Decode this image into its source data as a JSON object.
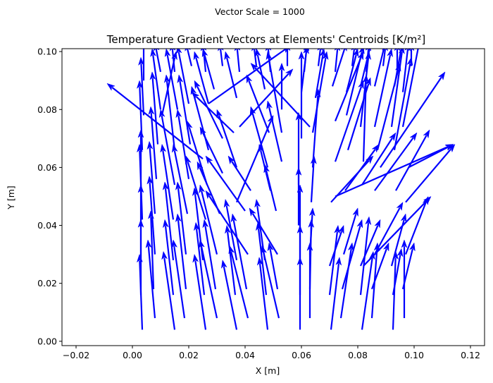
{
  "chart_data": {
    "type": "quiver",
    "suptitle": "Vector Scale = 1000",
    "title": "Temperature Gradient Vectors at Elements' Centroids [K/m²]",
    "xlabel": "X [m]",
    "ylabel": "Y [m]",
    "xlim": [
      -0.025,
      0.125
    ],
    "ylim": [
      -0.0015,
      0.101
    ],
    "xticks": [
      -0.02,
      0.0,
      0.02,
      0.04,
      0.06,
      0.08,
      0.1,
      0.12
    ],
    "xtick_labels": [
      "−0.02",
      "0.00",
      "0.02",
      "0.04",
      "0.06",
      "0.08",
      "0.10",
      "0.12"
    ],
    "yticks": [
      0.0,
      0.02,
      0.04,
      0.06,
      0.08,
      0.1
    ],
    "ytick_labels": [
      "0.00",
      "0.02",
      "0.04",
      "0.06",
      "0.08",
      "0.10"
    ],
    "color": "#0000ff",
    "grid": false,
    "vector_scale": 1000,
    "vectors": [
      {
        "x": 0.0035,
        "y": 0.004,
        "u": -0.001,
        "v": 0.026
      },
      {
        "x": 0.008,
        "y": 0.008,
        "u": -0.0025,
        "v": 0.027
      },
      {
        "x": 0.015,
        "y": 0.004,
        "u": -0.004,
        "v": 0.027
      },
      {
        "x": 0.0185,
        "y": 0.008,
        "u": -0.004,
        "v": 0.027
      },
      {
        "x": 0.026,
        "y": 0.004,
        "u": -0.004,
        "v": 0.026
      },
      {
        "x": 0.03,
        "y": 0.008,
        "u": -0.006,
        "v": 0.027
      },
      {
        "x": 0.037,
        "y": 0.004,
        "u": -0.005,
        "v": 0.024
      },
      {
        "x": 0.041,
        "y": 0.008,
        "u": -0.0065,
        "v": 0.025
      },
      {
        "x": 0.048,
        "y": 0.004,
        "u": -0.003,
        "v": 0.025
      },
      {
        "x": 0.052,
        "y": 0.008,
        "u": -0.006,
        "v": 0.025
      },
      {
        "x": 0.0595,
        "y": 0.004,
        "u": 0.0,
        "v": 0.025
      },
      {
        "x": 0.063,
        "y": 0.008,
        "u": 0.0,
        "v": 0.026
      },
      {
        "x": 0.0705,
        "y": 0.004,
        "u": 0.003,
        "v": 0.025
      },
      {
        "x": 0.074,
        "y": 0.008,
        "u": 0.004,
        "v": 0.026
      },
      {
        "x": 0.0815,
        "y": 0.004,
        "u": 0.004,
        "v": 0.027
      },
      {
        "x": 0.085,
        "y": 0.008,
        "u": 0.002,
        "v": 0.026
      },
      {
        "x": 0.0925,
        "y": 0.004,
        "u": 0.001,
        "v": 0.027
      },
      {
        "x": 0.0965,
        "y": 0.008,
        "u": 0.0,
        "v": 0.027
      },
      {
        "x": 0.003,
        "y": 0.016,
        "u": 0.0,
        "v": 0.026
      },
      {
        "x": 0.0075,
        "y": 0.018,
        "u": -0.001,
        "v": 0.027
      },
      {
        "x": 0.0145,
        "y": 0.016,
        "u": -0.003,
        "v": 0.026
      },
      {
        "x": 0.019,
        "y": 0.018,
        "u": -0.003,
        "v": 0.026
      },
      {
        "x": 0.0255,
        "y": 0.016,
        "u": -0.003,
        "v": 0.025
      },
      {
        "x": 0.0295,
        "y": 0.018,
        "u": -0.004,
        "v": 0.024
      },
      {
        "x": 0.0365,
        "y": 0.016,
        "u": -0.003,
        "v": 0.024
      },
      {
        "x": 0.0405,
        "y": 0.018,
        "u": -0.005,
        "v": 0.026
      },
      {
        "x": 0.0475,
        "y": 0.016,
        "u": -0.003,
        "v": 0.025
      },
      {
        "x": 0.0515,
        "y": 0.018,
        "u": -0.003,
        "v": 0.016
      },
      {
        "x": 0.0595,
        "y": 0.016,
        "u": 0.0,
        "v": 0.024
      },
      {
        "x": 0.063,
        "y": 0.018,
        "u": 0.0005,
        "v": 0.024
      },
      {
        "x": 0.07,
        "y": 0.016,
        "u": 0.003,
        "v": 0.024
      },
      {
        "x": 0.0745,
        "y": 0.018,
        "u": 0.007,
        "v": 0.024
      },
      {
        "x": 0.081,
        "y": 0.016,
        "u": 0.003,
        "v": 0.027
      },
      {
        "x": 0.085,
        "y": 0.018,
        "u": 0.006,
        "v": 0.016
      },
      {
        "x": 0.0925,
        "y": 0.016,
        "u": 0.003,
        "v": 0.016
      },
      {
        "x": 0.096,
        "y": 0.018,
        "u": 0.004,
        "v": 0.016
      },
      {
        "x": 0.003,
        "y": 0.028,
        "u": 0.0,
        "v": 0.026
      },
      {
        "x": 0.008,
        "y": 0.03,
        "u": -0.002,
        "v": 0.027
      },
      {
        "x": 0.0145,
        "y": 0.028,
        "u": -0.003,
        "v": 0.027
      },
      {
        "x": 0.019,
        "y": 0.03,
        "u": -0.003,
        "v": 0.025
      },
      {
        "x": 0.025,
        "y": 0.028,
        "u": -0.003,
        "v": 0.025
      },
      {
        "x": 0.03,
        "y": 0.03,
        "u": -0.006,
        "v": 0.024
      },
      {
        "x": 0.037,
        "y": 0.028,
        "u": -0.004,
        "v": 0.021
      },
      {
        "x": 0.041,
        "y": 0.03,
        "u": -0.015,
        "v": 0.022
      },
      {
        "x": 0.047,
        "y": 0.028,
        "u": -0.003,
        "v": 0.021
      },
      {
        "x": 0.0515,
        "y": 0.03,
        "u": -0.01,
        "v": 0.016
      },
      {
        "x": 0.0595,
        "y": 0.028,
        "u": 0.0,
        "v": 0.026
      },
      {
        "x": 0.063,
        "y": 0.03,
        "u": 0.001,
        "v": 0.016
      },
      {
        "x": 0.07,
        "y": 0.026,
        "u": 0.005,
        "v": 0.014
      },
      {
        "x": 0.075,
        "y": 0.03,
        "u": 0.005,
        "v": 0.016
      },
      {
        "x": 0.081,
        "y": 0.026,
        "u": 0.007,
        "v": 0.016
      },
      {
        "x": 0.086,
        "y": 0.03,
        "u": 0.01,
        "v": 0.018
      },
      {
        "x": 0.092,
        "y": 0.026,
        "u": 0.005,
        "v": 0.018
      },
      {
        "x": 0.097,
        "y": 0.03,
        "u": 0.008,
        "v": 0.02
      },
      {
        "x": 0.0035,
        "y": 0.042,
        "u": -0.001,
        "v": 0.026
      },
      {
        "x": 0.008,
        "y": 0.044,
        "u": -0.002,
        "v": 0.025
      },
      {
        "x": 0.0145,
        "y": 0.042,
        "u": -0.004,
        "v": 0.026
      },
      {
        "x": 0.0195,
        "y": 0.044,
        "u": -0.005,
        "v": 0.024
      },
      {
        "x": 0.026,
        "y": 0.042,
        "u": -0.007,
        "v": 0.022
      },
      {
        "x": 0.031,
        "y": 0.044,
        "u": -0.008,
        "v": 0.018
      },
      {
        "x": 0.04,
        "y": 0.045,
        "u": -0.014,
        "v": 0.019
      },
      {
        "x": 0.042,
        "y": 0.052,
        "u": -0.008,
        "v": 0.012
      },
      {
        "x": 0.049,
        "y": 0.052,
        "u": -0.004,
        "v": 0.016
      },
      {
        "x": 0.051,
        "y": 0.045,
        "u": -0.004,
        "v": 0.016
      },
      {
        "x": 0.059,
        "y": 0.04,
        "u": 0.0,
        "v": 0.02
      },
      {
        "x": 0.0635,
        "y": 0.048,
        "u": 0.001,
        "v": 0.016
      },
      {
        "x": 0.0705,
        "y": 0.048,
        "u": 0.015,
        "v": 0.016
      },
      {
        "x": 0.0755,
        "y": 0.052,
        "u": 0.012,
        "v": 0.016
      },
      {
        "x": 0.0815,
        "y": 0.054,
        "u": 0.012,
        "v": 0.018
      },
      {
        "x": 0.086,
        "y": 0.052,
        "u": 0.015,
        "v": 0.02
      },
      {
        "x": 0.0935,
        "y": 0.052,
        "u": 0.012,
        "v": 0.021
      },
      {
        "x": 0.097,
        "y": 0.048,
        "u": 0.0175,
        "v": 0.02
      },
      {
        "x": 0.003,
        "y": 0.053,
        "u": 0.0,
        "v": 0.02
      },
      {
        "x": 0.0085,
        "y": 0.056,
        "u": -0.002,
        "v": 0.025
      },
      {
        "x": 0.015,
        "y": 0.054,
        "u": -0.005,
        "v": 0.026
      },
      {
        "x": 0.02,
        "y": 0.056,
        "u": -0.004,
        "v": 0.024
      },
      {
        "x": 0.0265,
        "y": 0.054,
        "u": -0.007,
        "v": 0.022
      },
      {
        "x": 0.032,
        "y": 0.058,
        "u": -0.008,
        "v": 0.016
      },
      {
        "x": 0.037,
        "y": 0.06,
        "u": -0.007,
        "v": 0.02
      },
      {
        "x": 0.037,
        "y": 0.048,
        "u": 0.013,
        "v": 0.03
      },
      {
        "x": 0.048,
        "y": 0.06,
        "u": -0.006,
        "v": 0.021
      },
      {
        "x": 0.053,
        "y": 0.062,
        "u": -0.005,
        "v": 0.021
      },
      {
        "x": 0.059,
        "y": 0.054,
        "u": 0.0,
        "v": 0.025
      },
      {
        "x": 0.064,
        "y": 0.06,
        "u": 0.002,
        "v": 0.027
      },
      {
        "x": 0.072,
        "y": 0.062,
        "u": 0.01,
        "v": 0.028
      },
      {
        "x": 0.0765,
        "y": 0.066,
        "u": 0.008,
        "v": 0.025
      },
      {
        "x": 0.082,
        "y": 0.062,
        "u": 0.001,
        "v": 0.03
      },
      {
        "x": 0.087,
        "y": 0.066,
        "u": 0.008,
        "v": 0.03
      },
      {
        "x": 0.093,
        "y": 0.066,
        "u": 0.006,
        "v": 0.032
      },
      {
        "x": 0.098,
        "y": 0.06,
        "u": 0.016,
        "v": 0.008
      },
      {
        "x": 0.0035,
        "y": 0.066,
        "u": -0.001,
        "v": 0.024
      },
      {
        "x": 0.009,
        "y": 0.068,
        "u": -0.002,
        "v": 0.025
      },
      {
        "x": 0.015,
        "y": 0.066,
        "u": -0.003,
        "v": 0.026
      },
      {
        "x": 0.0205,
        "y": 0.068,
        "u": -0.004,
        "v": 0.024
      },
      {
        "x": 0.027,
        "y": 0.066,
        "u": -0.006,
        "v": 0.022
      },
      {
        "x": 0.032,
        "y": 0.07,
        "u": -0.01,
        "v": 0.02
      },
      {
        "x": 0.036,
        "y": 0.072,
        "u": -0.015,
        "v": 0.014
      },
      {
        "x": 0.027,
        "y": 0.082,
        "u": 0.029,
        "v": 0.02
      },
      {
        "x": 0.0485,
        "y": 0.072,
        "u": -0.008,
        "v": 0.02
      },
      {
        "x": 0.053,
        "y": 0.072,
        "u": -0.005,
        "v": 0.028
      },
      {
        "x": 0.06,
        "y": 0.07,
        "u": 0.0,
        "v": 0.03
      },
      {
        "x": 0.064,
        "y": 0.072,
        "u": 0.005,
        "v": 0.028
      },
      {
        "x": 0.072,
        "y": 0.076,
        "u": 0.01,
        "v": 0.024
      },
      {
        "x": 0.076,
        "y": 0.078,
        "u": 0.006,
        "v": 0.024
      },
      {
        "x": 0.081,
        "y": 0.074,
        "u": 0.003,
        "v": 0.026
      },
      {
        "x": 0.086,
        "y": 0.074,
        "u": 0.006,
        "v": 0.027
      },
      {
        "x": 0.092,
        "y": 0.074,
        "u": 0.004,
        "v": 0.028
      },
      {
        "x": 0.096,
        "y": 0.074,
        "u": 0.006,
        "v": 0.03
      },
      {
        "x": 0.004,
        "y": 0.078,
        "u": -0.001,
        "v": 0.02
      },
      {
        "x": 0.01,
        "y": 0.08,
        "u": -0.003,
        "v": 0.021
      },
      {
        "x": 0.016,
        "y": 0.08,
        "u": -0.004,
        "v": 0.021
      },
      {
        "x": 0.02,
        "y": 0.082,
        "u": -0.004,
        "v": 0.02
      },
      {
        "x": 0.027,
        "y": 0.082,
        "u": -0.005,
        "v": 0.018
      },
      {
        "x": 0.029,
        "y": 0.087,
        "u": -0.004,
        "v": 0.014
      },
      {
        "x": 0.037,
        "y": 0.084,
        "u": -0.004,
        "v": 0.016
      },
      {
        "x": 0.0105,
        "y": 0.078,
        "u": 0.005,
        "v": 0.022
      },
      {
        "x": 0.047,
        "y": 0.087,
        "u": -0.003,
        "v": 0.014
      },
      {
        "x": 0.053,
        "y": 0.08,
        "u": 0.0,
        "v": 0.016
      },
      {
        "x": 0.06,
        "y": 0.086,
        "u": 0.002,
        "v": 0.016
      },
      {
        "x": 0.065,
        "y": 0.084,
        "u": 0.003,
        "v": 0.017
      },
      {
        "x": 0.071,
        "y": 0.088,
        "u": 0.005,
        "v": 0.015
      },
      {
        "x": 0.076,
        "y": 0.086,
        "u": 0.004,
        "v": 0.015
      },
      {
        "x": 0.081,
        "y": 0.088,
        "u": 0.004,
        "v": 0.016
      },
      {
        "x": 0.086,
        "y": 0.088,
        "u": 0.004,
        "v": 0.016
      },
      {
        "x": 0.093,
        "y": 0.088,
        "u": 0.003,
        "v": 0.016
      },
      {
        "x": 0.096,
        "y": 0.086,
        "u": 0.002,
        "v": 0.017
      },
      {
        "x": 0.004,
        "y": 0.09,
        "u": 0.0,
        "v": 0.014
      },
      {
        "x": 0.01,
        "y": 0.093,
        "u": -0.002,
        "v": 0.01
      },
      {
        "x": 0.015,
        "y": 0.093,
        "u": -0.001,
        "v": 0.01
      },
      {
        "x": 0.021,
        "y": 0.095,
        "u": -0.002,
        "v": 0.008
      },
      {
        "x": 0.026,
        "y": 0.093,
        "u": -0.001,
        "v": 0.01
      },
      {
        "x": 0.032,
        "y": 0.095,
        "u": -0.001,
        "v": 0.008
      },
      {
        "x": 0.038,
        "y": 0.093,
        "u": -0.001,
        "v": 0.01
      },
      {
        "x": 0.044,
        "y": 0.095,
        "u": -0.001,
        "v": 0.008
      },
      {
        "x": 0.049,
        "y": 0.093,
        "u": -0.001,
        "v": 0.01
      },
      {
        "x": 0.055,
        "y": 0.095,
        "u": 0.0,
        "v": 0.008
      },
      {
        "x": 0.061,
        "y": 0.093,
        "u": 0.001,
        "v": 0.01
      },
      {
        "x": 0.066,
        "y": 0.095,
        "u": 0.001,
        "v": 0.008
      },
      {
        "x": 0.072,
        "y": 0.093,
        "u": 0.001,
        "v": 0.01
      },
      {
        "x": 0.078,
        "y": 0.095,
        "u": 0.001,
        "v": 0.008
      },
      {
        "x": 0.083,
        "y": 0.093,
        "u": 0.001,
        "v": 0.01
      },
      {
        "x": 0.089,
        "y": 0.095,
        "u": 0.001,
        "v": 0.008
      },
      {
        "x": 0.094,
        "y": 0.093,
        "u": 0.0,
        "v": 0.01
      },
      {
        "x": 0.099,
        "y": 0.095,
        "u": 0.0,
        "v": 0.008
      },
      {
        "x": 0.025,
        "y": 0.063,
        "u": -0.034,
        "v": 0.026
      },
      {
        "x": 0.063,
        "y": 0.074,
        "u": -0.021,
        "v": 0.022
      },
      {
        "x": 0.072,
        "y": 0.05,
        "u": 0.042,
        "v": 0.018
      },
      {
        "x": 0.082,
        "y": 0.026,
        "u": 0.024,
        "v": 0.024
      },
      {
        "x": 0.088,
        "y": 0.06,
        "u": 0.023,
        "v": 0.033
      },
      {
        "x": 0.038,
        "y": 0.074,
        "u": 0.019,
        "v": 0.02
      }
    ]
  }
}
